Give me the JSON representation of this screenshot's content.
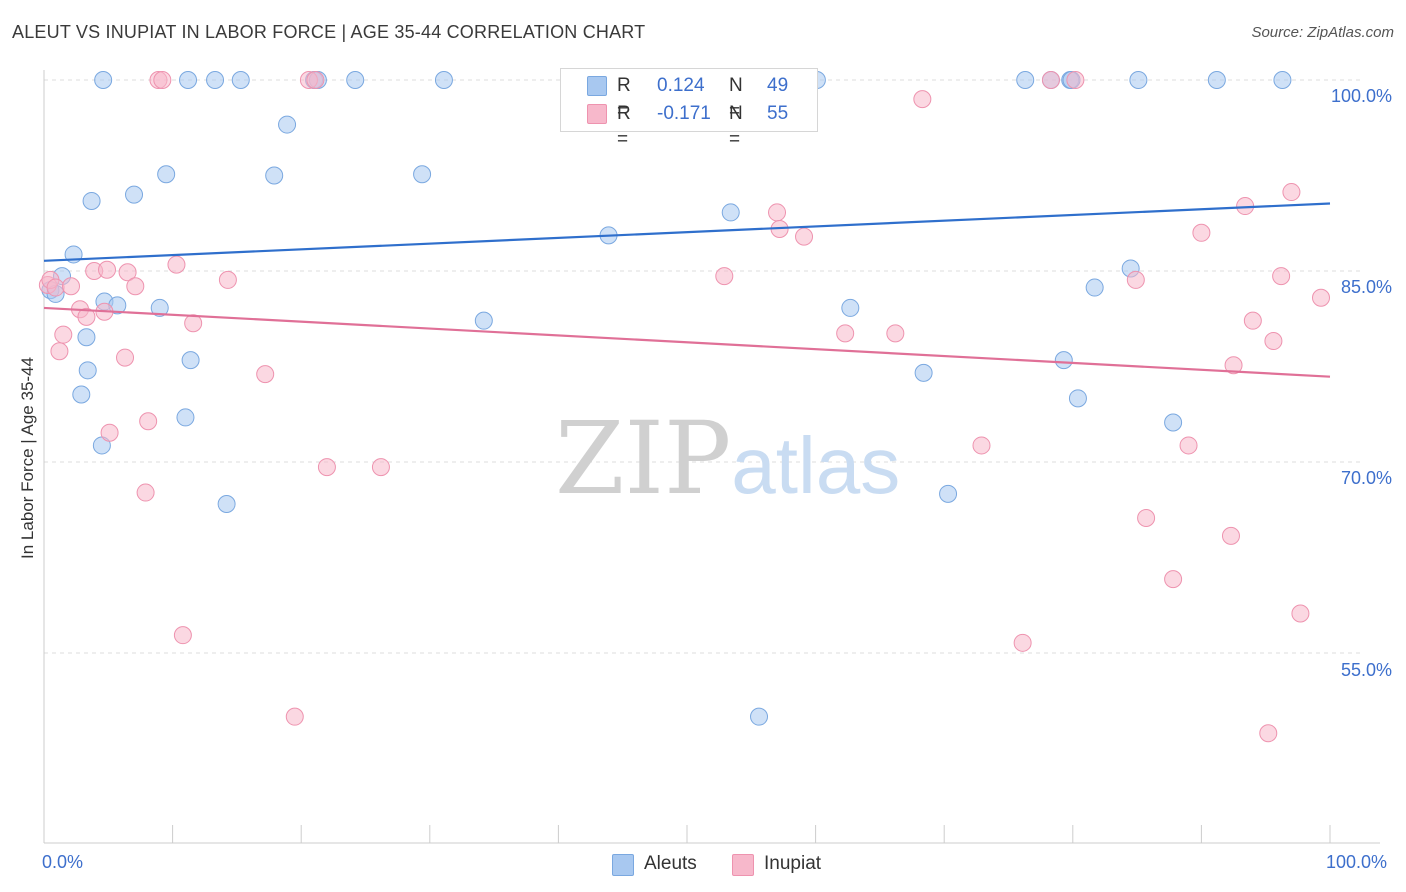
{
  "title": "ALEUT VS INUPIAT IN LABOR FORCE | AGE 35-44 CORRELATION CHART",
  "source": "Source: ZipAtlas.com",
  "watermark": {
    "part1": "ZIP",
    "part2": "atlas"
  },
  "legend": {
    "rows": [
      {
        "r_label": "R =",
        "r_value": "0.124",
        "n_label": "N =",
        "n_value": "49",
        "color": "#a8c8f0"
      },
      {
        "r_label": "R =",
        "r_value": "-0.171",
        "n_label": "N =",
        "n_value": "55",
        "color": "#f7b8cb"
      }
    ]
  },
  "bottom_legend": [
    {
      "label": "Aleuts",
      "color": "#a8c8f0"
    },
    {
      "label": "Inupiat",
      "color": "#f7b8cb"
    }
  ],
  "chart_data": {
    "type": "scatter",
    "title": "ALEUT VS INUPIAT IN LABOR FORCE | AGE 35-44 CORRELATION CHART",
    "xlabel": "",
    "ylabel": "In Labor Force | Age 35-44",
    "xlim": [
      0,
      100
    ],
    "ylim": [
      40,
      101.5
    ],
    "x_tick_labels": [
      "0.0%",
      "100.0%"
    ],
    "y_ticks": [
      55,
      70,
      85,
      100
    ],
    "y_tick_labels": [
      "55.0%",
      "70.0%",
      "85.0%",
      "100.0%"
    ],
    "grid": true,
    "legend_position": "top-center",
    "series": [
      {
        "name": "Aleuts",
        "color": "#a8c8f0",
        "stroke": "#7aa8e0",
        "trend_color": "#2f6fcc",
        "trend": {
          "x": [
            0,
            100
          ],
          "y": [
            85.8,
            90.3
          ]
        },
        "points": [
          [
            0.5,
            83.5
          ],
          [
            0.9,
            83.2
          ],
          [
            1.4,
            84.6
          ],
          [
            2.3,
            86.3
          ],
          [
            2.9,
            75.3
          ],
          [
            3.3,
            79.8
          ],
          [
            3.4,
            77.2
          ],
          [
            3.7,
            90.5
          ],
          [
            4.5,
            71.3
          ],
          [
            4.6,
            100
          ],
          [
            4.7,
            82.6
          ],
          [
            5.7,
            82.3
          ],
          [
            7.0,
            91.0
          ],
          [
            9.0,
            82.1
          ],
          [
            9.5,
            92.6
          ],
          [
            11.0,
            73.5
          ],
          [
            11.2,
            100
          ],
          [
            11.4,
            78.0
          ],
          [
            13.3,
            100
          ],
          [
            14.2,
            66.7
          ],
          [
            15.3,
            100
          ],
          [
            17.9,
            92.5
          ],
          [
            18.9,
            96.5
          ],
          [
            21.0,
            100
          ],
          [
            21.3,
            100
          ],
          [
            24.2,
            100
          ],
          [
            29.4,
            92.6
          ],
          [
            31.1,
            100
          ],
          [
            34.2,
            81.1
          ],
          [
            43.9,
            87.8
          ],
          [
            53.4,
            89.6
          ],
          [
            55.6,
            50.0
          ],
          [
            56.1,
            100
          ],
          [
            60.1,
            100
          ],
          [
            62.7,
            82.1
          ],
          [
            68.4,
            77.0
          ],
          [
            70.3,
            67.5
          ],
          [
            76.3,
            100
          ],
          [
            78.3,
            100
          ],
          [
            79.8,
            100
          ],
          [
            79.9,
            100
          ],
          [
            79.3,
            78.0
          ],
          [
            80.4,
            75.0
          ],
          [
            81.7,
            83.7
          ],
          [
            84.5,
            85.2
          ],
          [
            85.1,
            100
          ],
          [
            87.8,
            73.1
          ],
          [
            91.2,
            100
          ],
          [
            96.3,
            100
          ]
        ]
      },
      {
        "name": "Inupiat",
        "color": "#f7b8cb",
        "stroke": "#ee93af",
        "trend_color": "#e07097",
        "trend": {
          "x": [
            0,
            100
          ],
          "y": [
            82.1,
            76.7
          ]
        },
        "points": [
          [
            0.3,
            83.9
          ],
          [
            0.5,
            84.3
          ],
          [
            0.9,
            83.7
          ],
          [
            1.2,
            78.7
          ],
          [
            1.5,
            80.0
          ],
          [
            2.1,
            83.8
          ],
          [
            2.8,
            82.0
          ],
          [
            3.3,
            81.4
          ],
          [
            3.9,
            85.0
          ],
          [
            4.7,
            81.8
          ],
          [
            4.9,
            85.1
          ],
          [
            5.1,
            72.3
          ],
          [
            6.3,
            78.2
          ],
          [
            6.5,
            84.9
          ],
          [
            7.1,
            83.8
          ],
          [
            7.9,
            67.6
          ],
          [
            8.1,
            73.2
          ],
          [
            8.9,
            100
          ],
          [
            9.2,
            100
          ],
          [
            10.3,
            85.5
          ],
          [
            10.8,
            56.4
          ],
          [
            11.6,
            80.9
          ],
          [
            14.3,
            84.3
          ],
          [
            17.2,
            76.9
          ],
          [
            19.5,
            50.0
          ],
          [
            20.6,
            100
          ],
          [
            21.1,
            100
          ],
          [
            22.0,
            69.6
          ],
          [
            26.2,
            69.6
          ],
          [
            52.9,
            84.6
          ],
          [
            57.0,
            89.6
          ],
          [
            57.2,
            88.3
          ],
          [
            59.1,
            87.7
          ],
          [
            62.3,
            80.1
          ],
          [
            66.2,
            80.1
          ],
          [
            68.3,
            98.5
          ],
          [
            72.9,
            71.3
          ],
          [
            76.1,
            55.8
          ],
          [
            78.3,
            100
          ],
          [
            80.2,
            100
          ],
          [
            84.9,
            84.3
          ],
          [
            85.7,
            65.6
          ],
          [
            87.8,
            60.8
          ],
          [
            89.0,
            71.3
          ],
          [
            90.0,
            88.0
          ],
          [
            92.3,
            64.2
          ],
          [
            92.5,
            77.6
          ],
          [
            93.4,
            90.1
          ],
          [
            94.0,
            81.1
          ],
          [
            95.2,
            48.7
          ],
          [
            95.6,
            79.5
          ],
          [
            96.2,
            84.6
          ],
          [
            97.0,
            91.2
          ],
          [
            97.7,
            58.1
          ],
          [
            99.3,
            82.9
          ]
        ]
      }
    ]
  }
}
